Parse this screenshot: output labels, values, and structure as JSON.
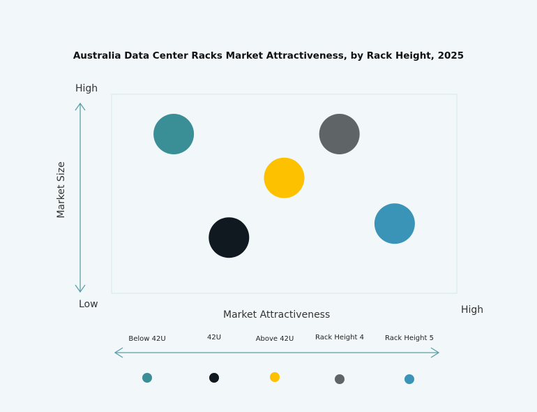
{
  "chart_data": {
    "type": "scatter",
    "title": "Australia Data Center Racks Market Attractiveness,  by Rack Height, 2025",
    "xlabel": "Market Attractiveness",
    "ylabel": "Market Size",
    "x_low_label": "Low",
    "x_high_label": "High",
    "y_high_label": "High",
    "xlim": [
      0,
      100
    ],
    "ylim": [
      0,
      100
    ],
    "grid": false,
    "legend_position": "bottom",
    "series": [
      {
        "name": "Below 42U",
        "x": 18,
        "y": 80,
        "color": "#3a8e96"
      },
      {
        "name": "42U",
        "x": 34,
        "y": 28,
        "color": "#101820"
      },
      {
        "name": "Above 42U",
        "x": 50,
        "y": 58,
        "color": "#fdc100"
      },
      {
        "name": "Rack Height 4",
        "x": 66,
        "y": 80,
        "color": "#5f6566"
      },
      {
        "name": "Rack Height 5",
        "x": 82,
        "y": 35,
        "color": "#3a94b8"
      }
    ]
  }
}
